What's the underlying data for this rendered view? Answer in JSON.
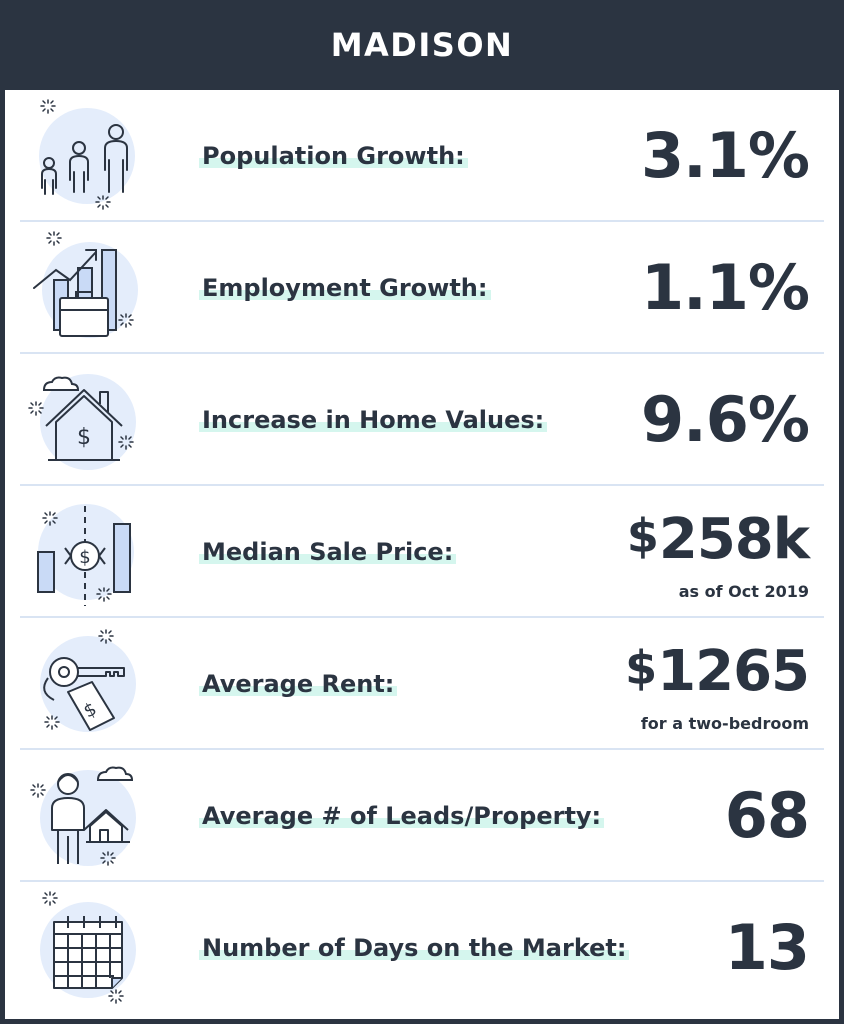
{
  "header": {
    "title": "MADISON"
  },
  "rows": [
    {
      "label": "Population Growth:",
      "value": "3.1%",
      "icon": "people-icon"
    },
    {
      "label": "Employment Growth:",
      "value": "1.1%",
      "icon": "briefcase-growth-icon"
    },
    {
      "label": "Increase in Home Values:",
      "value": "9.6%",
      "icon": "house-dollar-icon"
    },
    {
      "label": "Median Sale Price:",
      "currency": "$",
      "value": "258k",
      "sub": "as  of Oct 2019",
      "icon": "price-chart-icon"
    },
    {
      "label": "Average Rent:",
      "currency": "$",
      "value": "1265",
      "sub": "for a two-bedroom",
      "icon": "key-tag-icon"
    },
    {
      "label": "Average # of Leads/Property:",
      "value": "68",
      "icon": "person-house-icon"
    },
    {
      "label": "Number of Days on the Market:",
      "value": "13",
      "icon": "calendar-icon"
    }
  ],
  "colors": {
    "header": "#2b3441",
    "text": "#2b3441",
    "highlight": "#d5f6ee",
    "icon_fill": "#e4edfb",
    "divider": "#d9e4f3"
  }
}
